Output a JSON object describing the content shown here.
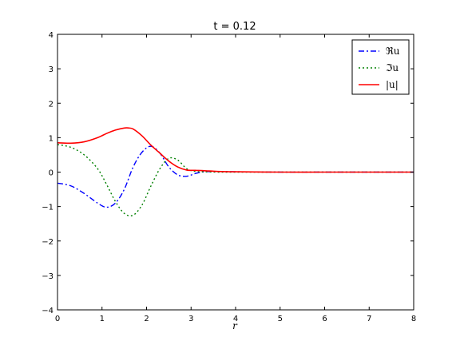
{
  "chart_data": {
    "type": "line",
    "title": "t = 0.12",
    "xlabel": "r",
    "ylabel": "",
    "xlim": [
      0,
      8
    ],
    "ylim": [
      -4,
      4
    ],
    "xticks": [
      0,
      1,
      2,
      3,
      4,
      5,
      6,
      7,
      8
    ],
    "yticks": [
      -4,
      -3,
      -2,
      -1,
      0,
      1,
      2,
      3,
      4
    ],
    "grid": false,
    "legend_position": "top-right",
    "series": [
      {
        "name": "ℜu",
        "color": "#0000ff",
        "style": "dashdot",
        "x": [
          0,
          0.3,
          0.6,
          0.9,
          1.1,
          1.3,
          1.5,
          1.7,
          1.9,
          2.1,
          2.3,
          2.5,
          2.7,
          2.9,
          3.1,
          3.3,
          3.6,
          4.0,
          5.0,
          6.0,
          7.0,
          8.0
        ],
        "y": [
          -0.32,
          -0.4,
          -0.62,
          -0.9,
          -1.02,
          -0.9,
          -0.5,
          0.15,
          0.58,
          0.75,
          0.55,
          0.15,
          -0.08,
          -0.12,
          -0.04,
          0.01,
          0.02,
          0.01,
          0.0,
          0.0,
          0.0,
          0.0
        ]
      },
      {
        "name": "ℑu",
        "color": "#008000",
        "style": "dotted",
        "x": [
          0,
          0.3,
          0.6,
          0.9,
          1.1,
          1.3,
          1.5,
          1.7,
          1.9,
          2.1,
          2.3,
          2.5,
          2.7,
          2.9,
          3.1,
          3.3,
          3.6,
          4.0,
          5.0,
          6.0,
          7.0,
          8.0
        ],
        "y": [
          0.8,
          0.72,
          0.5,
          0.1,
          -0.35,
          -0.85,
          -1.2,
          -1.25,
          -0.95,
          -0.4,
          0.1,
          0.4,
          0.35,
          0.1,
          0.02,
          0.01,
          0.0,
          0.0,
          0.0,
          0.0,
          0.0,
          0.0
        ]
      },
      {
        "name": "|u|",
        "color": "#ff0000",
        "style": "solid",
        "x": [
          0,
          0.3,
          0.6,
          0.9,
          1.1,
          1.3,
          1.5,
          1.6,
          1.7,
          1.9,
          2.1,
          2.3,
          2.5,
          2.7,
          2.9,
          3.1,
          3.3,
          3.6,
          4.0,
          5.0,
          6.0,
          7.0,
          8.0
        ],
        "y": [
          0.85,
          0.84,
          0.88,
          1.0,
          1.12,
          1.22,
          1.28,
          1.28,
          1.25,
          1.05,
          0.78,
          0.55,
          0.32,
          0.15,
          0.06,
          0.05,
          0.04,
          0.02,
          0.01,
          0.0,
          0.0,
          0.0,
          0.0
        ]
      }
    ]
  }
}
